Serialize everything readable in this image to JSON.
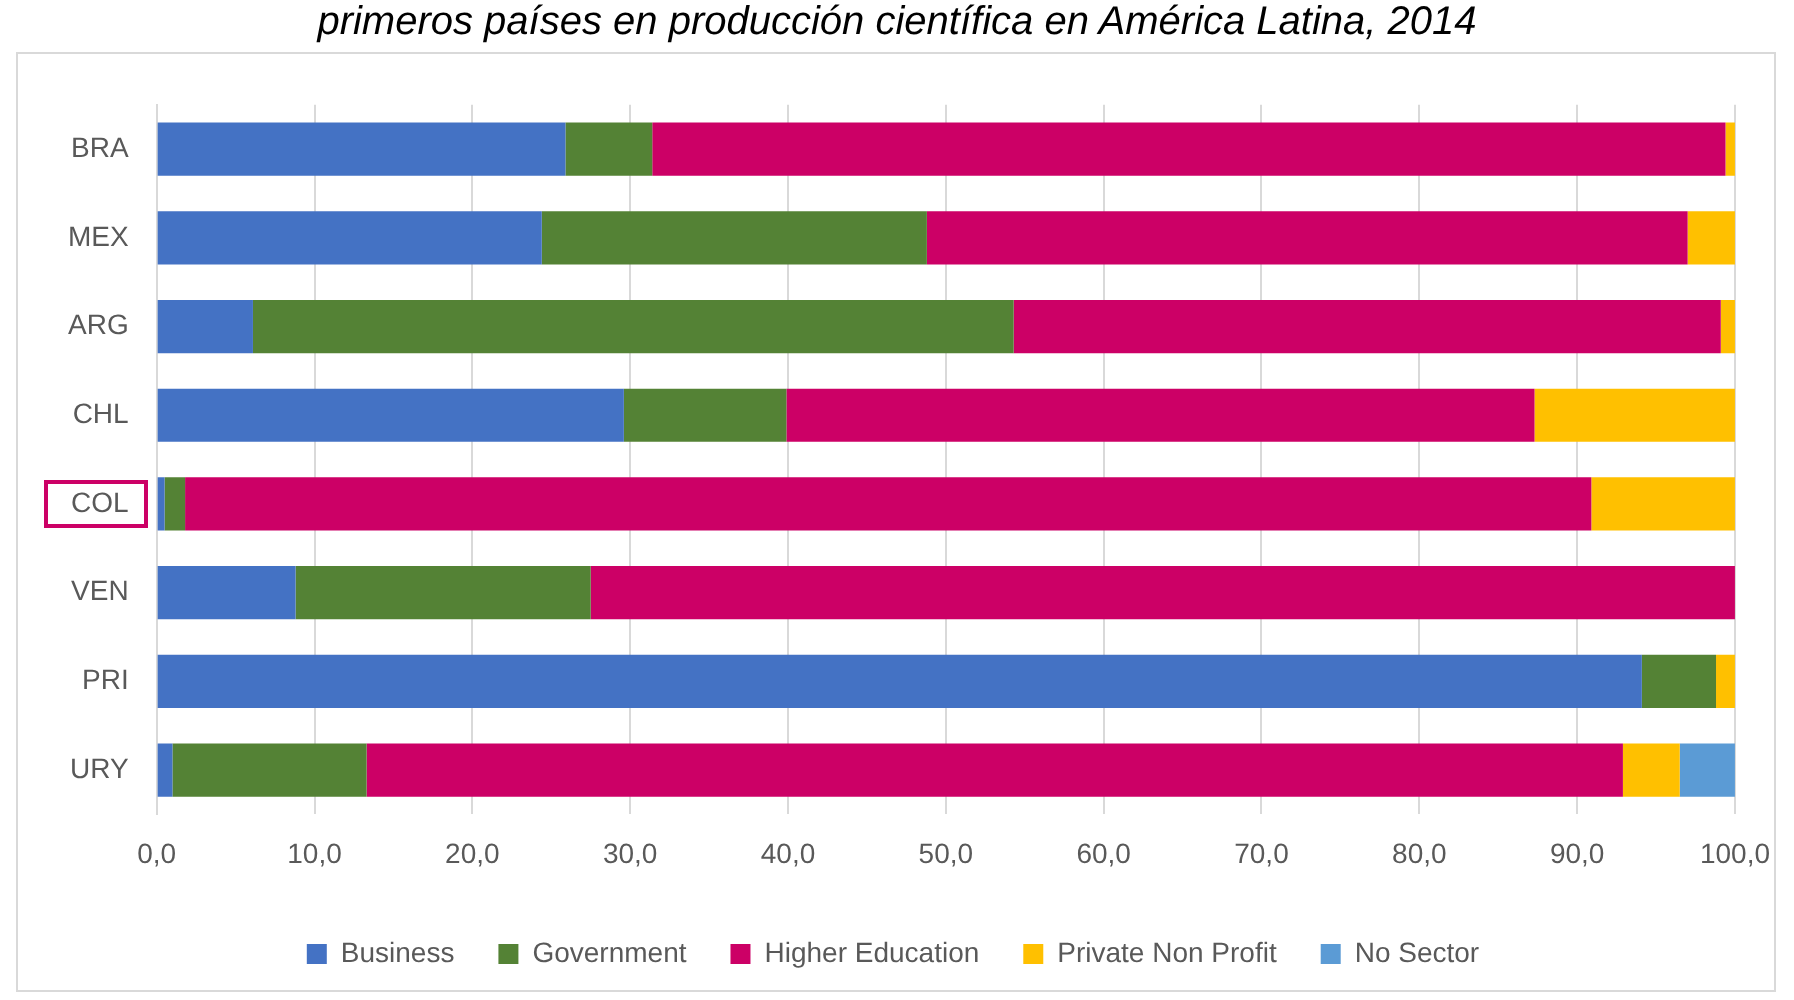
{
  "chart_data": {
    "type": "bar",
    "orientation": "horizontal",
    "stacked": true,
    "title": "primeros países en producción científica en América Latina, 2014",
    "categories": [
      "BRA",
      "MEX",
      "ARG",
      "CHL",
      "COL",
      "VEN",
      "PRI",
      "URY"
    ],
    "series": [
      {
        "name": "Business",
        "color": "#4472c4",
        "values": [
          25.9,
          24.4,
          6.1,
          29.6,
          0.5,
          8.8,
          94.1,
          1.0
        ]
      },
      {
        "name": "Government",
        "color": "#548235",
        "values": [
          5.5,
          24.4,
          48.2,
          10.3,
          1.3,
          18.7,
          4.7,
          12.3
        ]
      },
      {
        "name": "Higher Education",
        "color": "#cc0066",
        "values": [
          68.0,
          48.2,
          44.8,
          47.4,
          89.1,
          72.5,
          null,
          79.6
        ]
      },
      {
        "name": "Private Non Profit",
        "color": "#ffc000",
        "values": [
          0.6,
          3.0,
          0.9,
          12.7,
          9.1,
          null,
          1.2,
          3.6
        ]
      },
      {
        "name": "No Sector",
        "color": "#5b9bd5",
        "values": [
          null,
          null,
          null,
          null,
          null,
          null,
          null,
          3.5
        ]
      }
    ],
    "xlim": [
      0,
      100
    ],
    "xticks": [
      {
        "value": 0,
        "label": "0,0"
      },
      {
        "value": 10,
        "label": "10,0"
      },
      {
        "value": 20,
        "label": "20,0"
      },
      {
        "value": 30,
        "label": "30,0"
      },
      {
        "value": 40,
        "label": "40,0"
      },
      {
        "value": 50,
        "label": "50,0"
      },
      {
        "value": 60,
        "label": "60,0"
      },
      {
        "value": 70,
        "label": "70,0"
      },
      {
        "value": 80,
        "label": "80,0"
      },
      {
        "value": 90,
        "label": "90,0"
      },
      {
        "value": 100,
        "label": "100,0"
      }
    ],
    "grid": "x",
    "legend": "bottom"
  }
}
